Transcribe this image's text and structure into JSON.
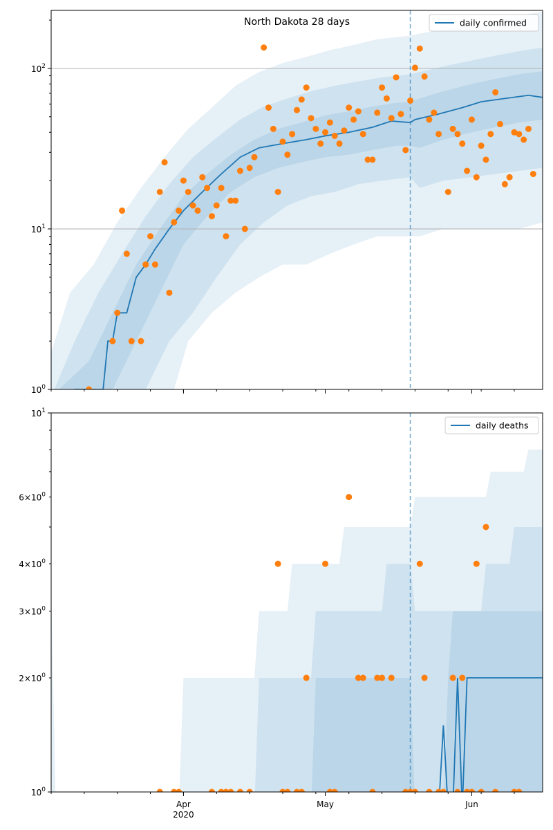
{
  "colors": {
    "line": "#1f77b4",
    "points": "#ff7f0e",
    "band": "#1f77b4",
    "grid": "#b0b0b0"
  },
  "shared_x": {
    "start_date": "2020-03-04",
    "end_date": "2020-06-16",
    "tick_labels": [
      "Apr",
      "May",
      "Jun"
    ],
    "year_label": "2020",
    "tick_dates": [
      "2020-04-01",
      "2020-05-01",
      "2020-06-01"
    ],
    "vline_date": "2020-05-19"
  },
  "chart_data": [
    {
      "type": "scatter",
      "title": "North Dakota 28 days",
      "legend": "daily confirmed",
      "legend_position": "top-right",
      "y_scale": "log",
      "ylim": [
        1,
        230
      ],
      "major_ticks": [
        1,
        10,
        100
      ],
      "major_tick_labels": [
        "10^0",
        "10^1",
        "10^2"
      ],
      "grid_y": [
        10,
        100
      ],
      "observed": [
        [
          "2020-03-12",
          1
        ],
        [
          "2020-03-17",
          2
        ],
        [
          "2020-03-18",
          3
        ],
        [
          "2020-03-19",
          13
        ],
        [
          "2020-03-20",
          7
        ],
        [
          "2020-03-21",
          2
        ],
        [
          "2020-03-23",
          2
        ],
        [
          "2020-03-24",
          6
        ],
        [
          "2020-03-25",
          9
        ],
        [
          "2020-03-26",
          6
        ],
        [
          "2020-03-27",
          17
        ],
        [
          "2020-03-28",
          26
        ],
        [
          "2020-03-29",
          4
        ],
        [
          "2020-03-30",
          11
        ],
        [
          "2020-03-31",
          13
        ],
        [
          "2020-04-01",
          20
        ],
        [
          "2020-04-02",
          17
        ],
        [
          "2020-04-03",
          14
        ],
        [
          "2020-04-04",
          13
        ],
        [
          "2020-04-05",
          21
        ],
        [
          "2020-04-06",
          18
        ],
        [
          "2020-04-07",
          12
        ],
        [
          "2020-04-08",
          14
        ],
        [
          "2020-04-09",
          18
        ],
        [
          "2020-04-10",
          9
        ],
        [
          "2020-04-11",
          15
        ],
        [
          "2020-04-12",
          15
        ],
        [
          "2020-04-13",
          23
        ],
        [
          "2020-04-14",
          10
        ],
        [
          "2020-04-15",
          24
        ],
        [
          "2020-04-16",
          28
        ],
        [
          "2020-04-18",
          135
        ],
        [
          "2020-04-19",
          57
        ],
        [
          "2020-04-20",
          42
        ],
        [
          "2020-04-21",
          17
        ],
        [
          "2020-04-22",
          35
        ],
        [
          "2020-04-23",
          29
        ],
        [
          "2020-04-24",
          39
        ],
        [
          "2020-04-25",
          55
        ],
        [
          "2020-04-26",
          64
        ],
        [
          "2020-04-27",
          76
        ],
        [
          "2020-04-28",
          49
        ],
        [
          "2020-04-29",
          42
        ],
        [
          "2020-04-30",
          34
        ],
        [
          "2020-05-01",
          40
        ],
        [
          "2020-05-02",
          46
        ],
        [
          "2020-05-03",
          38
        ],
        [
          "2020-05-04",
          34
        ],
        [
          "2020-05-05",
          41
        ],
        [
          "2020-05-06",
          57
        ],
        [
          "2020-05-07",
          48
        ],
        [
          "2020-05-08",
          54
        ],
        [
          "2020-05-09",
          39
        ],
        [
          "2020-05-10",
          27
        ],
        [
          "2020-05-11",
          27
        ],
        [
          "2020-05-12",
          53
        ],
        [
          "2020-05-13",
          76
        ],
        [
          "2020-05-14",
          65
        ],
        [
          "2020-05-15",
          49
        ],
        [
          "2020-05-16",
          88
        ],
        [
          "2020-05-17",
          52
        ],
        [
          "2020-05-18",
          31
        ],
        [
          "2020-05-19",
          63
        ],
        [
          "2020-05-20",
          101
        ],
        [
          "2020-05-21",
          133
        ],
        [
          "2020-05-22",
          89
        ],
        [
          "2020-05-23",
          48
        ],
        [
          "2020-05-24",
          53
        ],
        [
          "2020-05-25",
          39
        ],
        [
          "2020-05-27",
          17
        ],
        [
          "2020-05-28",
          42
        ],
        [
          "2020-05-29",
          39
        ],
        [
          "2020-05-30",
          34
        ],
        [
          "2020-05-31",
          23
        ],
        [
          "2020-06-01",
          48
        ],
        [
          "2020-06-02",
          21
        ],
        [
          "2020-06-03",
          33
        ],
        [
          "2020-06-04",
          27
        ],
        [
          "2020-06-05",
          39
        ],
        [
          "2020-06-06",
          71
        ],
        [
          "2020-06-07",
          45
        ],
        [
          "2020-06-08",
          19
        ],
        [
          "2020-06-09",
          21
        ],
        [
          "2020-06-10",
          40
        ],
        [
          "2020-06-11",
          39
        ],
        [
          "2020-06-12",
          36
        ],
        [
          "2020-06-13",
          42
        ],
        [
          "2020-06-14",
          22
        ]
      ],
      "median": [
        [
          "2020-03-04",
          0.9
        ],
        [
          "2020-03-09",
          1
        ],
        [
          "2020-03-15",
          1
        ],
        [
          "2020-03-16",
          2
        ],
        [
          "2020-03-17",
          2
        ],
        [
          "2020-03-18",
          3
        ],
        [
          "2020-03-20",
          3
        ],
        [
          "2020-03-22",
          5
        ],
        [
          "2020-03-24",
          6
        ],
        [
          "2020-03-26",
          7.5
        ],
        [
          "2020-03-29",
          10
        ],
        [
          "2020-04-01",
          13
        ],
        [
          "2020-04-05",
          17
        ],
        [
          "2020-04-09",
          22
        ],
        [
          "2020-04-13",
          28
        ],
        [
          "2020-04-17",
          32
        ],
        [
          "2020-04-22",
          34
        ],
        [
          "2020-04-27",
          36
        ],
        [
          "2020-05-01",
          38
        ],
        [
          "2020-05-06",
          40
        ],
        [
          "2020-05-11",
          43
        ],
        [
          "2020-05-15",
          47
        ],
        [
          "2020-05-19",
          46
        ],
        [
          "2020-05-20",
          48
        ],
        [
          "2020-05-25",
          52
        ],
        [
          "2020-05-30",
          57
        ],
        [
          "2020-06-03",
          62
        ],
        [
          "2020-06-08",
          65
        ],
        [
          "2020-06-13",
          68
        ],
        [
          "2020-06-16",
          66
        ]
      ],
      "band_outer": [
        [
          "2020-03-04",
          1.7,
          0.9
        ],
        [
          "2020-03-08",
          4,
          0.9
        ],
        [
          "2020-03-13",
          6,
          0.9
        ],
        [
          "2020-03-18",
          11,
          0.9
        ],
        [
          "2020-03-23",
          18,
          0.9
        ],
        [
          "2020-03-28",
          28,
          0.9
        ],
        [
          "2020-03-30",
          33,
          1
        ],
        [
          "2020-04-02",
          42,
          2
        ],
        [
          "2020-04-07",
          57,
          3
        ],
        [
          "2020-04-12",
          78,
          4
        ],
        [
          "2020-04-17",
          95,
          5
        ],
        [
          "2020-04-22",
          108,
          6
        ],
        [
          "2020-04-27",
          118,
          6
        ],
        [
          "2020-05-02",
          130,
          7
        ],
        [
          "2020-05-07",
          140,
          8
        ],
        [
          "2020-05-12",
          152,
          9
        ],
        [
          "2020-05-19",
          160,
          9
        ],
        [
          "2020-05-21",
          165,
          9
        ],
        [
          "2020-05-26",
          175,
          10
        ],
        [
          "2020-06-01",
          185,
          10
        ],
        [
          "2020-06-06",
          195,
          10
        ],
        [
          "2020-06-11",
          215,
          10
        ],
        [
          "2020-06-16",
          225,
          11
        ]
      ],
      "band_middle": [
        [
          "2020-03-04",
          0.9,
          0.9
        ],
        [
          "2020-03-09",
          2,
          0.9
        ],
        [
          "2020-03-14",
          4,
          0.9
        ],
        [
          "2020-03-19",
          7,
          0.9
        ],
        [
          "2020-03-24",
          12,
          1
        ],
        [
          "2020-03-29",
          19,
          2
        ],
        [
          "2020-04-03",
          28,
          3
        ],
        [
          "2020-04-08",
          37,
          5
        ],
        [
          "2020-04-13",
          48,
          8
        ],
        [
          "2020-04-18",
          58,
          11
        ],
        [
          "2020-04-23",
          65,
          14
        ],
        [
          "2020-04-28",
          72,
          16
        ],
        [
          "2020-05-03",
          78,
          17
        ],
        [
          "2020-05-08",
          83,
          19
        ],
        [
          "2020-05-13",
          88,
          20
        ],
        [
          "2020-05-19",
          92,
          21
        ],
        [
          "2020-05-21",
          95,
          18
        ],
        [
          "2020-05-26",
          103,
          20
        ],
        [
          "2020-06-01",
          112,
          21
        ],
        [
          "2020-06-06",
          120,
          22
        ],
        [
          "2020-06-11",
          128,
          23
        ],
        [
          "2020-06-16",
          135,
          24
        ]
      ],
      "band_inner": [
        [
          "2020-03-04",
          0.9,
          0.9
        ],
        [
          "2020-03-12",
          1.5,
          0.9
        ],
        [
          "2020-03-17",
          3,
          1
        ],
        [
          "2020-03-22",
          6,
          2
        ],
        [
          "2020-03-27",
          10,
          4
        ],
        [
          "2020-04-01",
          16,
          8
        ],
        [
          "2020-04-06",
          22,
          12
        ],
        [
          "2020-04-11",
          29,
          17
        ],
        [
          "2020-04-16",
          36,
          21
        ],
        [
          "2020-04-21",
          42,
          24
        ],
        [
          "2020-04-26",
          46,
          26
        ],
        [
          "2020-05-01",
          51,
          28
        ],
        [
          "2020-05-06",
          54,
          29
        ],
        [
          "2020-05-11",
          58,
          31
        ],
        [
          "2020-05-16",
          61,
          33
        ],
        [
          "2020-05-19",
          62,
          33
        ],
        [
          "2020-05-21",
          65,
          32
        ],
        [
          "2020-05-26",
          72,
          36
        ],
        [
          "2020-06-01",
          80,
          40
        ],
        [
          "2020-06-06",
          86,
          43
        ],
        [
          "2020-06-11",
          92,
          46
        ],
        [
          "2020-06-16",
          96,
          48
        ]
      ]
    },
    {
      "type": "scatter",
      "title": "",
      "legend": "daily deaths",
      "legend_position": "top-right",
      "y_scale": "log",
      "ylim": [
        1,
        10
      ],
      "major_ticks": [
        1,
        10
      ],
      "major_tick_labels": [
        "10^0",
        "10^1"
      ],
      "minor_ticks": [
        2,
        3,
        4,
        6
      ],
      "minor_tick_labels": [
        "2×10^0",
        "3×10^0",
        "4×10^0",
        "6×10^0"
      ],
      "observed": [
        [
          "2020-03-27",
          1
        ],
        [
          "2020-03-30",
          1
        ],
        [
          "2020-03-31",
          1
        ],
        [
          "2020-04-07",
          1
        ],
        [
          "2020-04-09",
          1
        ],
        [
          "2020-04-10",
          1
        ],
        [
          "2020-04-11",
          1
        ],
        [
          "2020-04-13",
          1
        ],
        [
          "2020-04-15",
          1
        ],
        [
          "2020-04-21",
          4
        ],
        [
          "2020-04-22",
          1
        ],
        [
          "2020-04-23",
          1
        ],
        [
          "2020-04-25",
          1
        ],
        [
          "2020-04-26",
          1
        ],
        [
          "2020-04-27",
          2
        ],
        [
          "2020-05-01",
          4
        ],
        [
          "2020-05-02",
          1
        ],
        [
          "2020-05-03",
          1
        ],
        [
          "2020-05-06",
          6
        ],
        [
          "2020-05-08",
          2
        ],
        [
          "2020-05-09",
          2
        ],
        [
          "2020-05-11",
          1
        ],
        [
          "2020-05-12",
          2
        ],
        [
          "2020-05-13",
          2
        ],
        [
          "2020-05-15",
          2
        ],
        [
          "2020-05-18",
          1
        ],
        [
          "2020-05-19",
          1
        ],
        [
          "2020-05-20",
          1
        ],
        [
          "2020-05-21",
          4
        ],
        [
          "2020-05-22",
          2
        ],
        [
          "2020-05-23",
          1
        ],
        [
          "2020-05-25",
          1
        ],
        [
          "2020-05-26",
          1
        ],
        [
          "2020-05-28",
          2
        ],
        [
          "2020-05-29",
          1
        ],
        [
          "2020-05-30",
          2
        ],
        [
          "2020-05-31",
          1
        ],
        [
          "2020-06-01",
          1
        ],
        [
          "2020-06-02",
          4
        ],
        [
          "2020-06-03",
          1
        ],
        [
          "2020-06-04",
          5
        ],
        [
          "2020-06-06",
          1
        ],
        [
          "2020-06-10",
          1
        ],
        [
          "2020-06-11",
          1
        ]
      ],
      "median": [
        [
          "2020-03-04",
          0.9
        ],
        [
          "2020-05-25",
          0.9
        ],
        [
          "2020-05-26",
          1.5
        ],
        [
          "2020-05-27",
          0.9
        ],
        [
          "2020-05-28",
          0.9
        ],
        [
          "2020-05-29",
          2
        ],
        [
          "2020-05-30",
          0.9
        ],
        [
          "2020-05-31",
          2
        ],
        [
          "2020-06-16",
          2
        ]
      ],
      "band_outer": [
        [
          "2020-03-04",
          3.5,
          0.9
        ],
        [
          "2020-03-05",
          0.9,
          0.9
        ],
        [
          "2020-03-31",
          0.9,
          0.9
        ],
        [
          "2020-04-01",
          2,
          0.9
        ],
        [
          "2020-04-16",
          2,
          0.9
        ],
        [
          "2020-04-17",
          3,
          0.9
        ],
        [
          "2020-04-23",
          3,
          0.9
        ],
        [
          "2020-04-24",
          4,
          0.9
        ],
        [
          "2020-05-04",
          4,
          0.9
        ],
        [
          "2020-05-05",
          5,
          0.9
        ],
        [
          "2020-05-19",
          5,
          0.9
        ],
        [
          "2020-05-20",
          6,
          0.9
        ],
        [
          "2020-06-04",
          6,
          0.9
        ],
        [
          "2020-06-05",
          7,
          0.9
        ],
        [
          "2020-06-12",
          7,
          0.9
        ],
        [
          "2020-06-13",
          8,
          0.9
        ],
        [
          "2020-06-16",
          8,
          0.9
        ]
      ],
      "band_middle": [
        [
          "2020-03-04",
          0.9,
          0.9
        ],
        [
          "2020-04-16",
          0.9,
          0.9
        ],
        [
          "2020-04-17",
          2,
          0.9
        ],
        [
          "2020-04-28",
          2,
          0.9
        ],
        [
          "2020-04-29",
          3,
          0.9
        ],
        [
          "2020-05-13",
          3,
          0.9
        ],
        [
          "2020-05-14",
          4,
          0.9
        ],
        [
          "2020-05-19",
          4,
          0.9
        ],
        [
          "2020-05-20",
          3,
          0.9
        ],
        [
          "2020-06-03",
          3,
          0.9
        ],
        [
          "2020-06-04",
          4,
          0.9
        ],
        [
          "2020-06-09",
          4,
          0.9
        ],
        [
          "2020-06-10",
          5,
          0.9
        ],
        [
          "2020-06-16",
          5,
          0.9
        ]
      ],
      "band_inner": [
        [
          "2020-03-04",
          0.9,
          0.9
        ],
        [
          "2020-04-28",
          0.9,
          0.9
        ],
        [
          "2020-04-29",
          2,
          0.9
        ],
        [
          "2020-05-19",
          2,
          0.9
        ],
        [
          "2020-05-20",
          0.9,
          0.9
        ],
        [
          "2020-05-26",
          0.9,
          0.9
        ],
        [
          "2020-05-27",
          2,
          0.9
        ],
        [
          "2020-05-28",
          3,
          0.9
        ],
        [
          "2020-06-16",
          3,
          0.9
        ]
      ]
    }
  ]
}
